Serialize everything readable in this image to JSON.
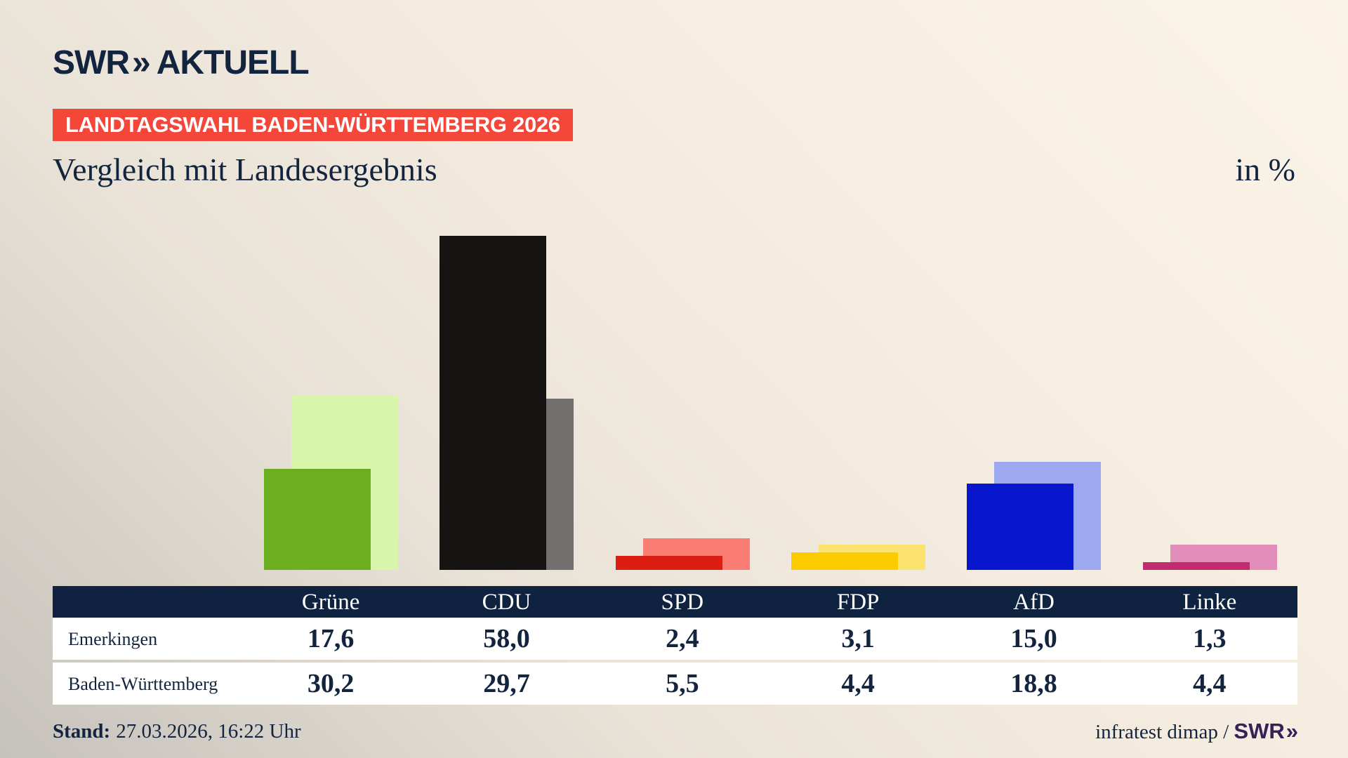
{
  "brand": {
    "swr": "SWR",
    "chevrons": "»",
    "aktuell": "AKTUELL"
  },
  "header": {
    "badge": "LANDTAGSWAHL BADEN-WÜRTTEMBERG 2026",
    "title": "Vergleich mit Landesergebnis",
    "unit": "in %"
  },
  "chart_data": {
    "type": "bar",
    "title": "Vergleich mit Landesergebnis",
    "unit": "in %",
    "categories": [
      "Grüne",
      "CDU",
      "SPD",
      "FDP",
      "AfD",
      "Linke"
    ],
    "series": [
      {
        "name": "Emerkingen",
        "values": [
          17.6,
          58.0,
          2.4,
          3.1,
          15.0,
          1.3
        ],
        "colors": [
          "#6cae1f",
          "#161412",
          "#db1d13",
          "#fccc00",
          "#0817cd",
          "#c32b70"
        ]
      },
      {
        "name": "Baden-Württemberg",
        "values": [
          30.2,
          29.7,
          5.5,
          4.4,
          18.8,
          4.4
        ],
        "colors": [
          "#d8f6ab",
          "#72706e",
          "#fa7d73",
          "#fce26e",
          "#9ca9f1",
          "#e18cb9"
        ]
      }
    ],
    "ylim": [
      0,
      60
    ],
    "grid": false,
    "legend": "table-below",
    "bar_style": "overlapped-offset-pairs"
  },
  "table": {
    "rows": [
      {
        "label": "Emerkingen",
        "values": [
          "17,6",
          "58,0",
          "2,4",
          "3,1",
          "15,0",
          "1,3"
        ]
      },
      {
        "label": "Baden-Württemberg",
        "values": [
          "30,2",
          "29,7",
          "5,5",
          "4,4",
          "18,8",
          "4,4"
        ]
      }
    ]
  },
  "footer": {
    "stand_label": "Stand:",
    "stand_value": "27.03.2026, 16:22 Uhr",
    "source": "infratest dimap / ",
    "source_brand": "SWR"
  },
  "colors": {
    "navy": "#0f2240",
    "text_navy": "#13243f",
    "badge_red": "#f4473a",
    "source_purple": "#362057",
    "background_light": "#faf3e7",
    "background_dark": "#c6c2bc",
    "table_row_bg": "#ffffff"
  }
}
